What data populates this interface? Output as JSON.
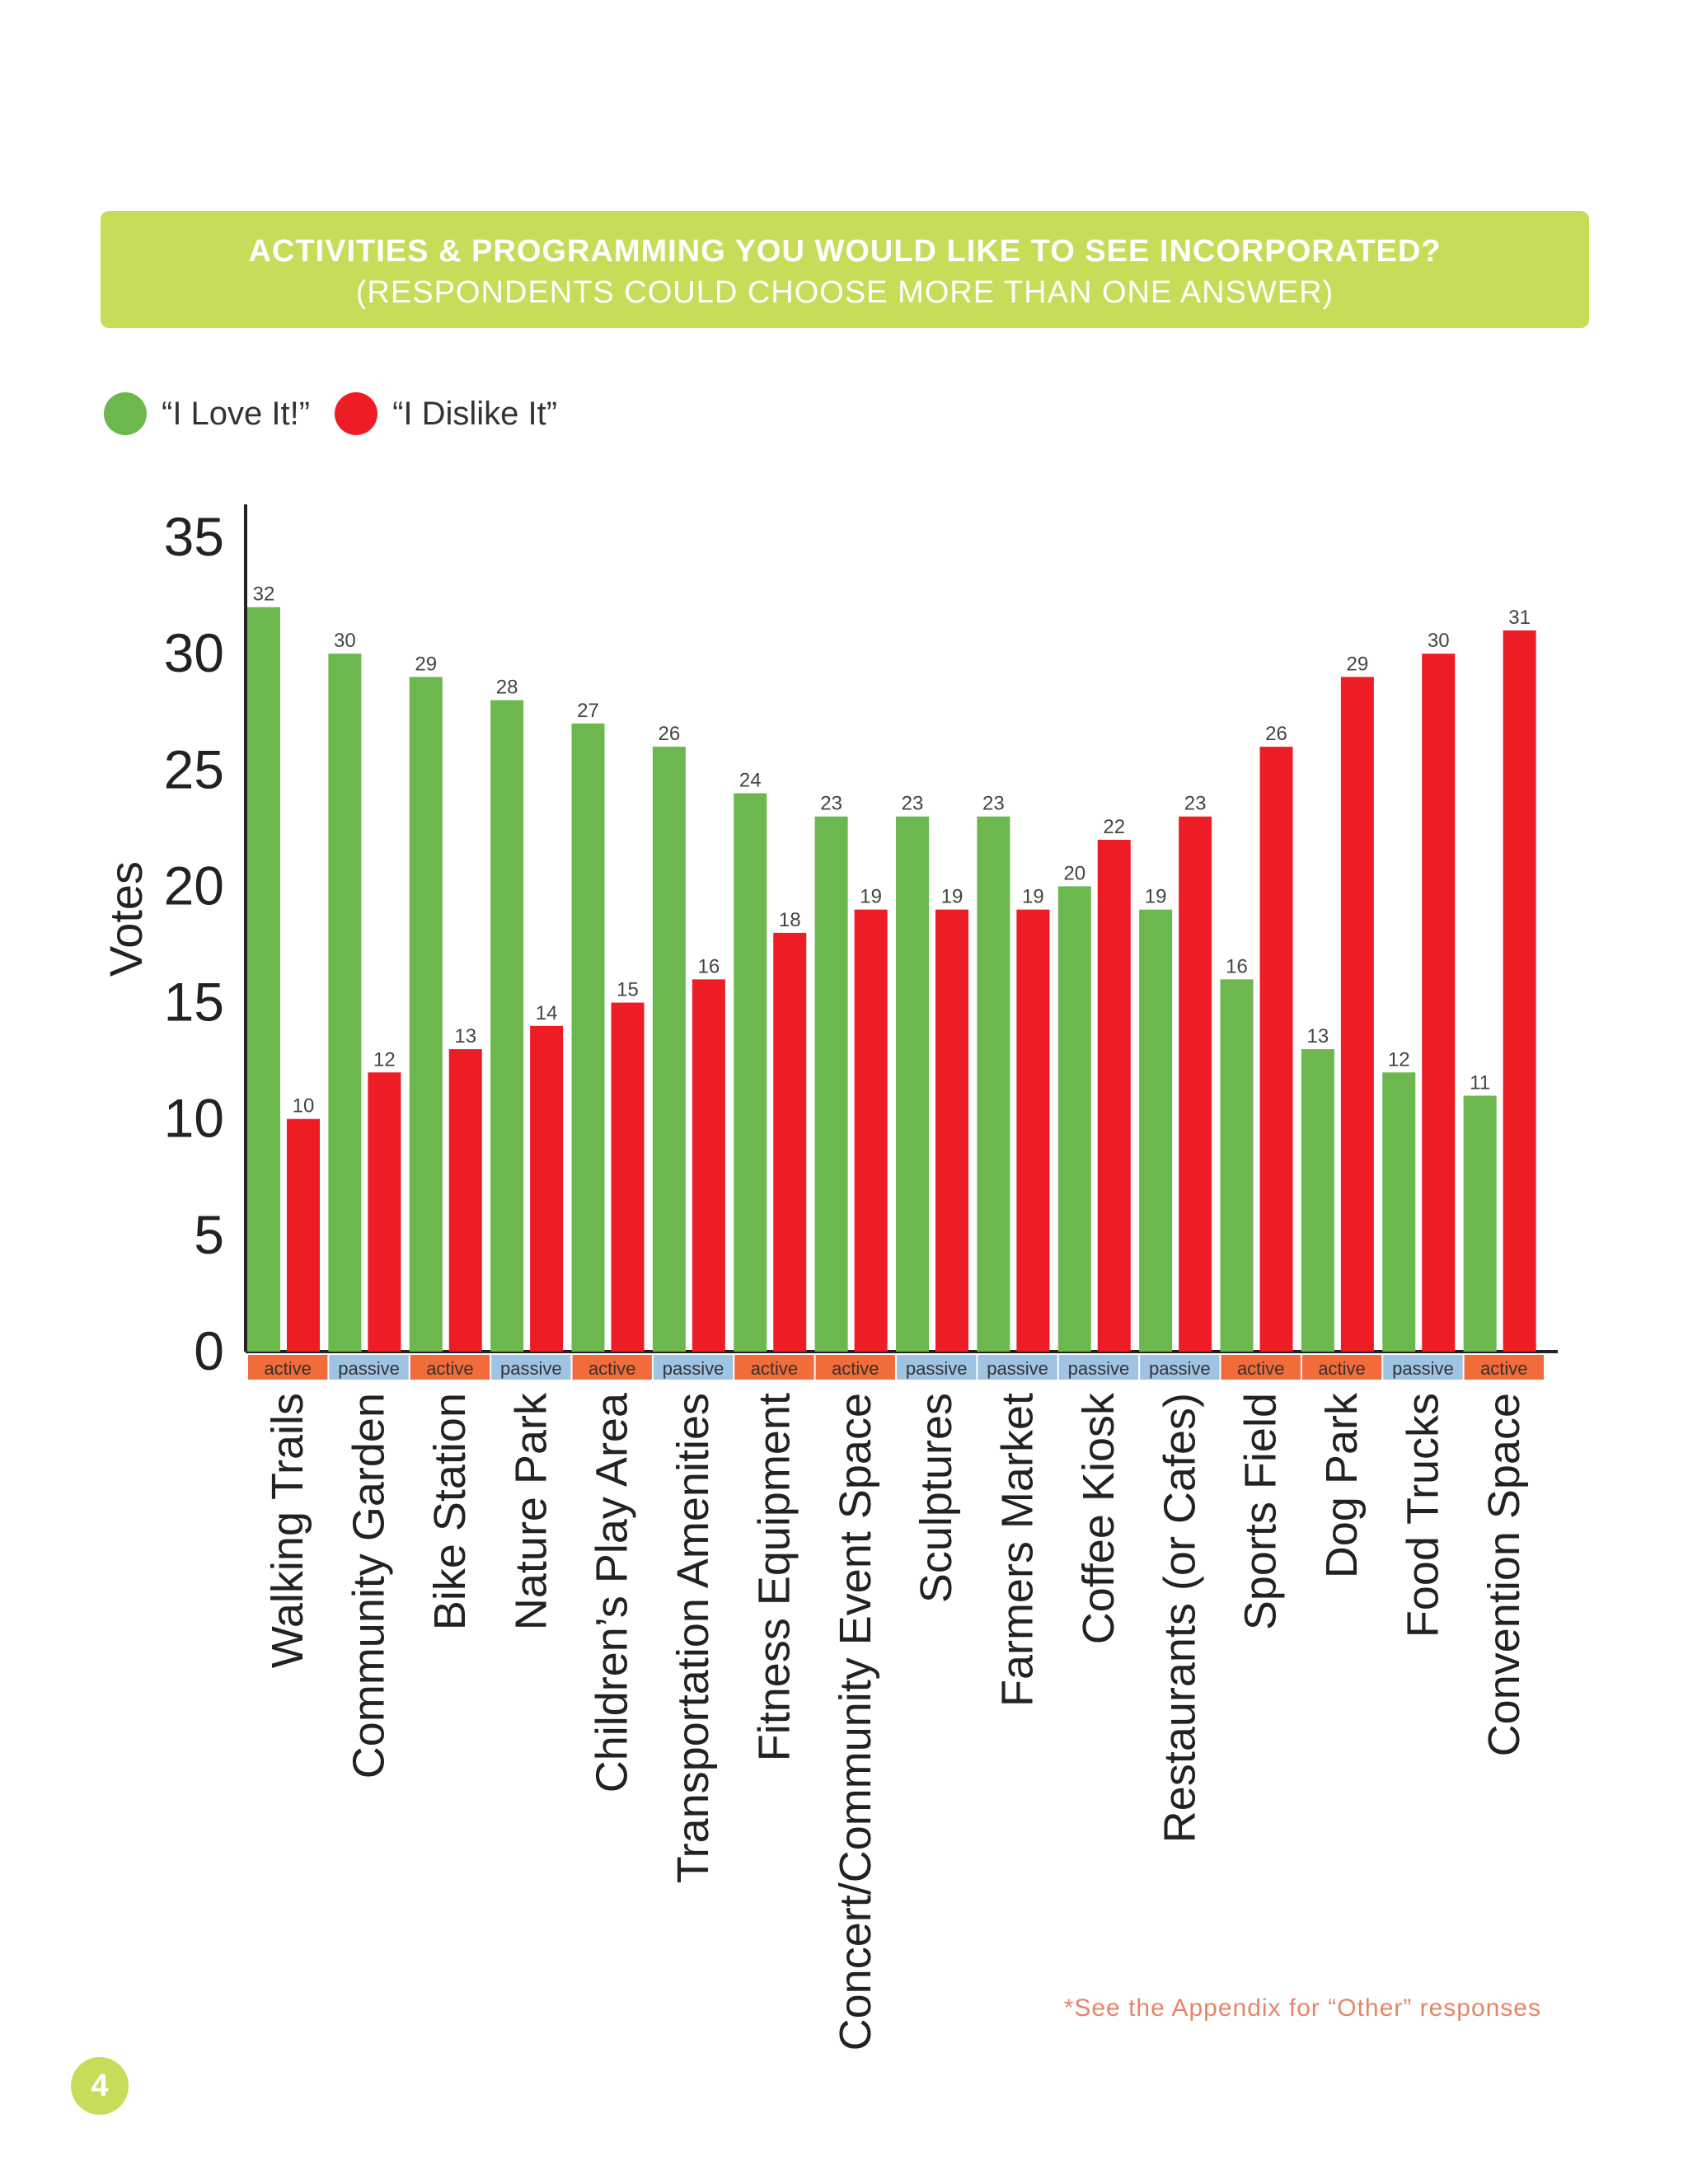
{
  "header": {
    "title": "ACTIVITIES & PROGRAMMING YOU WOULD LIKE TO SEE INCORPORATED?",
    "subtitle": "(RESPONDENTS COULD CHOOSE MORE THAN ONE ANSWER)"
  },
  "legend": [
    {
      "label": "“I Love It!”",
      "color": "#6cb84e"
    },
    {
      "label": "“I Dislike It”",
      "color": "#ee1d25"
    }
  ],
  "colors": {
    "love": "#6cb84e",
    "dislike": "#ee1d25",
    "active_tag": "#f26b3a",
    "passive_tag": "#9fc3e2",
    "banner": "#c8dc5a"
  },
  "chart_data": {
    "type": "bar",
    "title": "ACTIVITIES & PROGRAMMING YOU WOULD LIKE TO SEE INCORPORATED?",
    "xlabel": "",
    "ylabel": "Votes",
    "ylim": [
      0,
      35
    ],
    "yticks": [
      0,
      5,
      10,
      15,
      20,
      25,
      30,
      35
    ],
    "grid": false,
    "legend_position": "top-left",
    "categories": [
      "Walking Trails",
      "Community Garden",
      "Bike Station",
      "Nature Park",
      "Children’s Play Area",
      "Transportation Amenities",
      "Fitness Equipment",
      "Concert/Community Event Space",
      "Sculptures",
      "Farmers Market",
      "Coffee Kiosk",
      "Restaurants (or Cafes)",
      "Sports Field",
      "Dog Park",
      "Food Trucks",
      "Convention Space"
    ],
    "tags": [
      "active",
      "passive",
      "active",
      "passive",
      "active",
      "passive",
      "active",
      "active",
      "passive",
      "passive",
      "passive",
      "passive",
      "active",
      "active",
      "passive",
      "active"
    ],
    "series": [
      {
        "name": "“I Love It!”",
        "values": [
          32,
          30,
          29,
          28,
          27,
          26,
          24,
          23,
          23,
          23,
          20,
          19,
          16,
          13,
          12,
          11
        ]
      },
      {
        "name": "“I Dislike It”",
        "values": [
          10,
          12,
          13,
          14,
          15,
          16,
          18,
          19,
          19,
          19,
          22,
          23,
          26,
          29,
          30,
          31
        ]
      }
    ]
  },
  "footnote": "*See the Appendix for “Other” responses",
  "page_number": "4"
}
